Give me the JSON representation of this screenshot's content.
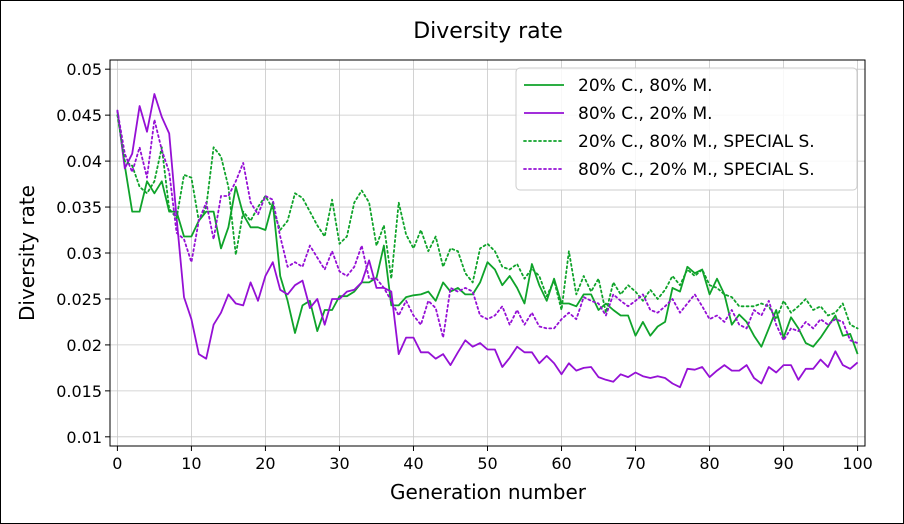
{
  "chart_data": {
    "type": "line",
    "title": "Diversity rate",
    "xlabel": "Generation number",
    "ylabel": "Diversity rate",
    "xlim": [
      -1,
      101
    ],
    "ylim": [
      0.009,
      0.051
    ],
    "xticks": [
      0,
      10,
      20,
      30,
      40,
      50,
      60,
      70,
      80,
      90,
      100
    ],
    "yticks": [
      0.01,
      0.015,
      0.02,
      0.025,
      0.03,
      0.035,
      0.04,
      0.045,
      0.05
    ],
    "ytick_labels": [
      "0.01",
      "0.015",
      "0.02",
      "0.025",
      "0.03",
      "0.035",
      "0.04",
      "0.045",
      "0.05"
    ],
    "grid": true,
    "legend_position": "top-right",
    "series": [
      {
        "name": "20% C., 80% M.",
        "color": "#0fa32a",
        "style": "solid",
        "values": [
          0.0455,
          0.0395,
          0.0345,
          0.0345,
          0.0378,
          0.0365,
          0.0378,
          0.0345,
          0.0345,
          0.0318,
          0.0318,
          0.0335,
          0.0345,
          0.0345,
          0.0305,
          0.0328,
          0.0372,
          0.0342,
          0.0328,
          0.0328,
          0.0325,
          0.0355,
          0.0275,
          0.0248,
          0.0213,
          0.0243,
          0.0248,
          0.0215,
          0.0238,
          0.0238,
          0.0253,
          0.0253,
          0.0258,
          0.0268,
          0.0268,
          0.0273,
          0.0308,
          0.0243,
          0.0243,
          0.0252,
          0.0254,
          0.0255,
          0.0258,
          0.0248,
          0.0268,
          0.0258,
          0.0262,
          0.0255,
          0.0255,
          0.0268,
          0.029,
          0.0282,
          0.0265,
          0.0275,
          0.0262,
          0.0245,
          0.0288,
          0.0265,
          0.0248,
          0.0272,
          0.0245,
          0.0245,
          0.0242,
          0.0255,
          0.0255,
          0.0238,
          0.0245,
          0.0238,
          0.0232,
          0.0232,
          0.021,
          0.0225,
          0.021,
          0.022,
          0.0225,
          0.0262,
          0.0258,
          0.0285,
          0.0278,
          0.0282,
          0.0255,
          0.0272,
          0.0255,
          0.0222,
          0.0233,
          0.0225,
          0.021,
          0.0198,
          0.0218,
          0.0238,
          0.0208,
          0.023,
          0.0218,
          0.0202,
          0.0198,
          0.0208,
          0.022,
          0.0232,
          0.021,
          0.0212,
          0.019
        ]
      },
      {
        "name": "80% C., 20% M.",
        "color": "#9510d5",
        "style": "solid",
        "values": [
          0.0455,
          0.0392,
          0.0408,
          0.046,
          0.0432,
          0.0473,
          0.0448,
          0.043,
          0.0338,
          0.0252,
          0.0228,
          0.019,
          0.0185,
          0.0222,
          0.0235,
          0.0255,
          0.0245,
          0.0243,
          0.0268,
          0.0248,
          0.0275,
          0.029,
          0.026,
          0.0255,
          0.0265,
          0.027,
          0.024,
          0.025,
          0.0222,
          0.025,
          0.025,
          0.0258,
          0.026,
          0.0268,
          0.0292,
          0.0262,
          0.0262,
          0.0258,
          0.019,
          0.0208,
          0.0208,
          0.0192,
          0.0192,
          0.0185,
          0.019,
          0.0178,
          0.0192,
          0.0205,
          0.0198,
          0.0202,
          0.0195,
          0.0195,
          0.0176,
          0.0186,
          0.0198,
          0.0192,
          0.0192,
          0.018,
          0.0188,
          0.018,
          0.0168,
          0.018,
          0.0172,
          0.0175,
          0.0176,
          0.0165,
          0.0162,
          0.016,
          0.0168,
          0.0165,
          0.017,
          0.0166,
          0.0164,
          0.0166,
          0.0164,
          0.0158,
          0.0154,
          0.0174,
          0.0173,
          0.0176,
          0.0165,
          0.0172,
          0.0178,
          0.0172,
          0.0172,
          0.0178,
          0.0164,
          0.0158,
          0.0176,
          0.017,
          0.0178,
          0.0178,
          0.0162,
          0.0174,
          0.0174,
          0.0184,
          0.0176,
          0.0193,
          0.0178,
          0.0174,
          0.0181
        ]
      },
      {
        "name": "20% C., 80% M., SPECIAL S.",
        "color": "#0fa32a",
        "style": "dotted",
        "values": [
          0.045,
          0.04,
          0.0395,
          0.0372,
          0.0365,
          0.0378,
          0.0415,
          0.0348,
          0.0338,
          0.0385,
          0.0382,
          0.0335,
          0.035,
          0.0415,
          0.0405,
          0.0372,
          0.0298,
          0.0345,
          0.0335,
          0.035,
          0.0362,
          0.0348,
          0.0325,
          0.0335,
          0.0365,
          0.036,
          0.0345,
          0.033,
          0.0318,
          0.0358,
          0.031,
          0.0318,
          0.0355,
          0.0368,
          0.0355,
          0.0308,
          0.033,
          0.0272,
          0.0355,
          0.032,
          0.0305,
          0.0325,
          0.0302,
          0.0318,
          0.0285,
          0.0305,
          0.0302,
          0.0278,
          0.0268,
          0.0305,
          0.031,
          0.0302,
          0.0285,
          0.0282,
          0.0288,
          0.0272,
          0.0283,
          0.0275,
          0.0253,
          0.027,
          0.0238,
          0.0302,
          0.0255,
          0.0275,
          0.0258,
          0.0272,
          0.0235,
          0.0268,
          0.0255,
          0.0265,
          0.0258,
          0.0248,
          0.026,
          0.025,
          0.026,
          0.0275,
          0.0265,
          0.0282,
          0.0275,
          0.0282,
          0.0265,
          0.0262,
          0.0255,
          0.0252,
          0.0242,
          0.0242,
          0.0242,
          0.0245,
          0.0242,
          0.0228,
          0.0248,
          0.0235,
          0.0242,
          0.025,
          0.0238,
          0.0242,
          0.0232,
          0.0235,
          0.0245,
          0.0222,
          0.0218
        ]
      },
      {
        "name": "80% C., 20% M., SPECIAL S.",
        "color": "#9510d5",
        "style": "dotted",
        "values": [
          0.0455,
          0.0408,
          0.0388,
          0.0415,
          0.0382,
          0.0445,
          0.0412,
          0.0388,
          0.0322,
          0.0315,
          0.029,
          0.0335,
          0.0355,
          0.0315,
          0.0362,
          0.0362,
          0.0378,
          0.0398,
          0.0355,
          0.0342,
          0.0362,
          0.0358,
          0.0318,
          0.0285,
          0.029,
          0.0285,
          0.0308,
          0.0295,
          0.0282,
          0.0302,
          0.028,
          0.0275,
          0.0285,
          0.0308,
          0.0272,
          0.0272,
          0.0262,
          0.0248,
          0.0232,
          0.0248,
          0.0232,
          0.0222,
          0.0248,
          0.024,
          0.0208,
          0.0262,
          0.0258,
          0.0262,
          0.0258,
          0.0232,
          0.0228,
          0.0232,
          0.0242,
          0.0222,
          0.0238,
          0.0222,
          0.0235,
          0.022,
          0.0218,
          0.0218,
          0.0228,
          0.0235,
          0.0228,
          0.0252,
          0.0248,
          0.0245,
          0.0232,
          0.0255,
          0.0248,
          0.0242,
          0.0248,
          0.0255,
          0.0238,
          0.0235,
          0.0242,
          0.025,
          0.0235,
          0.0245,
          0.0255,
          0.0242,
          0.0228,
          0.0232,
          0.0225,
          0.0238,
          0.0222,
          0.0218,
          0.0238,
          0.0232,
          0.0248,
          0.0222,
          0.0205,
          0.0218,
          0.0215,
          0.0225,
          0.0218,
          0.0228,
          0.0222,
          0.0228,
          0.0225,
          0.0205,
          0.0202
        ]
      }
    ]
  }
}
